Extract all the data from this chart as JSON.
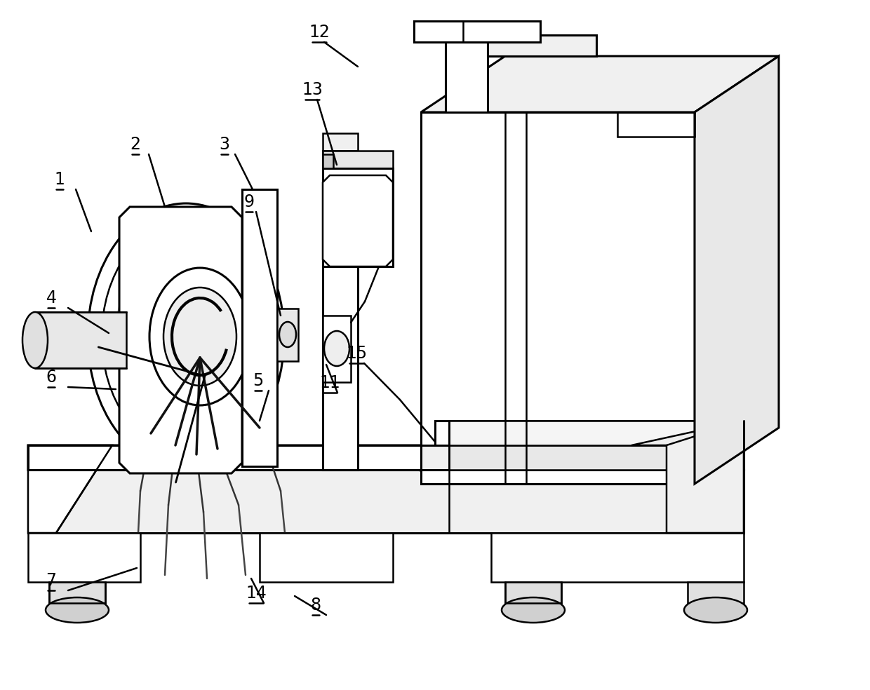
{
  "bg": "#ffffff",
  "lc": "#000000",
  "lw": 1.8,
  "tlw": 2.2,
  "fs": 17
}
